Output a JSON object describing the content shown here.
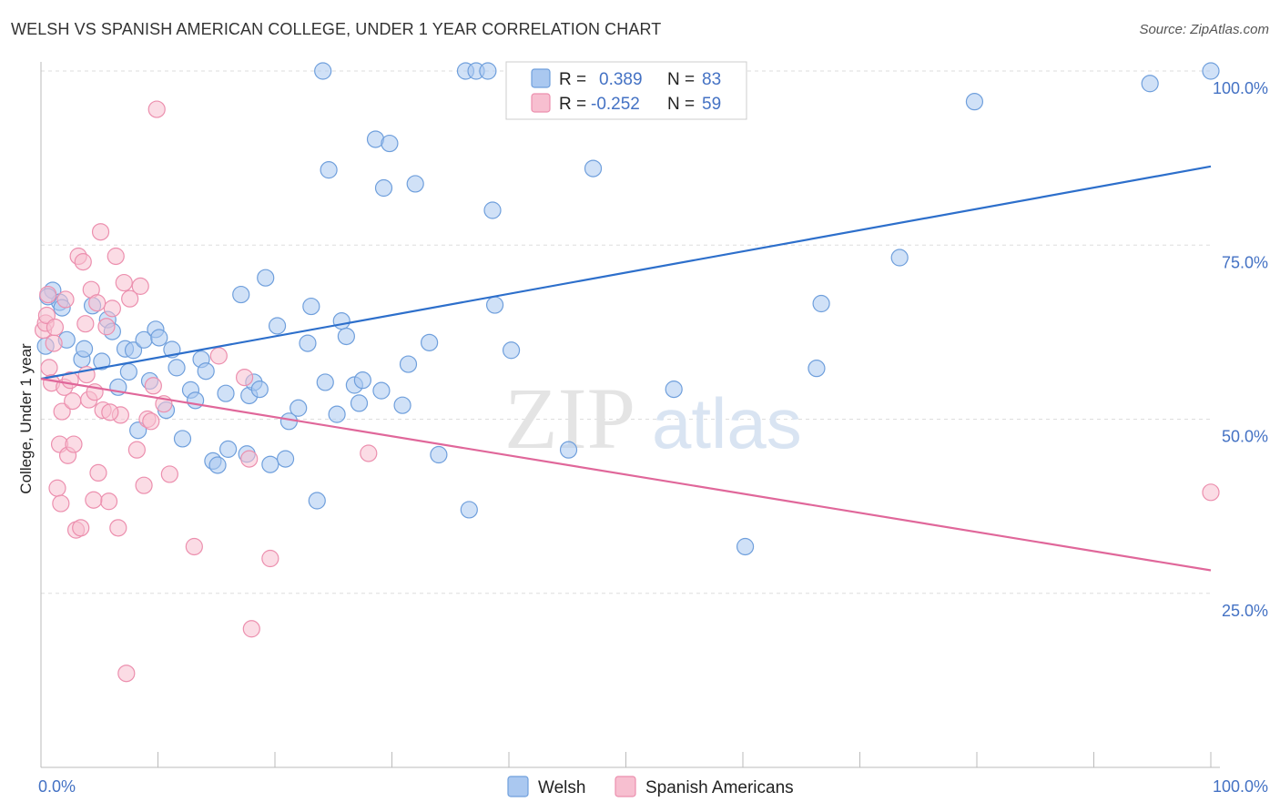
{
  "header": {
    "title": "WELSH VS SPANISH AMERICAN COLLEGE, UNDER 1 YEAR CORRELATION CHART",
    "source": "Source: ZipAtlas.com"
  },
  "watermark": {
    "zip": "ZIP",
    "atlas": "atlas"
  },
  "colors": {
    "welsh_fill": "#aac8f0",
    "welsh_stroke": "#6f9fdc",
    "welsh_line": "#2d6fcb",
    "spanish_fill": "#f7bfd0",
    "spanish_stroke": "#ec8fae",
    "spanish_line": "#e0679a",
    "grid": "#dddddd",
    "axis_text": "#4472c4"
  },
  "legend": {
    "r_label": "R =",
    "n_label": "N =",
    "rows": [
      {
        "series": "Welsh",
        "r": "0.389",
        "n": "83"
      },
      {
        "series": "Spanish Americans",
        "r": "-0.252",
        "n": "59"
      }
    ]
  },
  "chart_data": {
    "type": "scatter",
    "title": "WELSH VS SPANISH AMERICAN COLLEGE, UNDER 1 YEAR CORRELATION CHART",
    "xlabel": "",
    "ylabel": "College, Under 1 year",
    "xlim": [
      0,
      100
    ],
    "ylim": [
      0,
      100
    ],
    "x_ticks": [
      0,
      10,
      20,
      30,
      40,
      50,
      60,
      70,
      80,
      90,
      100
    ],
    "x_tick_labels": [
      {
        "value": 0,
        "label": "0.0%"
      },
      {
        "value": 100,
        "label": "100.0%"
      }
    ],
    "y_tick_labels": [
      {
        "value": 25,
        "label": "25.0%"
      },
      {
        "value": 50,
        "label": "50.0%"
      },
      {
        "value": 75,
        "label": "75.0%"
      },
      {
        "value": 100,
        "label": "100.0%"
      }
    ],
    "grid": true,
    "legend_position": "top-center",
    "series": [
      {
        "name": "Welsh",
        "r": 0.389,
        "n": 83,
        "trend": [
          [
            0,
            55.8
          ],
          [
            100,
            86.3
          ]
        ],
        "points": [
          [
            0.4,
            60.5
          ],
          [
            1.0,
            68.5
          ],
          [
            1.6,
            66.8
          ],
          [
            1.8,
            66.0
          ],
          [
            2.2,
            61.4
          ],
          [
            3.5,
            58.6
          ],
          [
            3.7,
            60.1
          ],
          [
            4.4,
            66.3
          ],
          [
            5.2,
            58.3
          ],
          [
            5.7,
            64.3
          ],
          [
            6.1,
            62.6
          ],
          [
            6.6,
            54.6
          ],
          [
            7.2,
            60.1
          ],
          [
            7.5,
            56.8
          ],
          [
            7.9,
            59.9
          ],
          [
            8.3,
            48.4
          ],
          [
            8.8,
            61.4
          ],
          [
            9.3,
            55.5
          ],
          [
            9.8,
            62.9
          ],
          [
            10.1,
            61.7
          ],
          [
            10.7,
            51.3
          ],
          [
            11.2,
            60.0
          ],
          [
            11.6,
            57.4
          ],
          [
            12.1,
            47.2
          ],
          [
            12.8,
            54.2
          ],
          [
            13.2,
            52.7
          ],
          [
            13.7,
            58.6
          ],
          [
            14.1,
            56.9
          ],
          [
            14.7,
            44.0
          ],
          [
            15.1,
            43.4
          ],
          [
            15.8,
            53.7
          ],
          [
            16.0,
            45.7
          ],
          [
            17.1,
            67.9
          ],
          [
            17.6,
            45.0
          ],
          [
            17.8,
            53.4
          ],
          [
            18.2,
            55.3
          ],
          [
            18.7,
            54.3
          ],
          [
            19.2,
            70.3
          ],
          [
            19.6,
            43.5
          ],
          [
            20.2,
            63.4
          ],
          [
            20.9,
            44.3
          ],
          [
            21.2,
            49.7
          ],
          [
            22.0,
            51.6
          ],
          [
            22.8,
            60.9
          ],
          [
            23.1,
            66.2
          ],
          [
            23.6,
            38.3
          ],
          [
            24.1,
            100.0
          ],
          [
            24.3,
            55.3
          ],
          [
            24.6,
            85.8
          ],
          [
            25.3,
            50.7
          ],
          [
            25.7,
            64.1
          ],
          [
            26.1,
            61.9
          ],
          [
            26.8,
            54.9
          ],
          [
            27.2,
            52.3
          ],
          [
            27.5,
            55.6
          ],
          [
            28.6,
            90.2
          ],
          [
            29.1,
            54.1
          ],
          [
            29.3,
            83.2
          ],
          [
            29.8,
            89.6
          ],
          [
            30.9,
            52.0
          ],
          [
            31.4,
            57.9
          ],
          [
            32.0,
            83.8
          ],
          [
            33.2,
            61.0
          ],
          [
            34.0,
            44.9
          ],
          [
            36.3,
            100.0
          ],
          [
            36.6,
            37.0
          ],
          [
            37.2,
            100.0
          ],
          [
            38.2,
            100.0
          ],
          [
            38.6,
            80.0
          ],
          [
            38.8,
            66.4
          ],
          [
            40.2,
            59.9
          ],
          [
            41.0,
            100.0
          ],
          [
            45.1,
            45.6
          ],
          [
            47.2,
            86.0
          ],
          [
            54.1,
            54.3
          ],
          [
            60.2,
            31.7
          ],
          [
            66.3,
            57.3
          ],
          [
            66.7,
            66.6
          ],
          [
            73.4,
            73.2
          ],
          [
            79.8,
            95.6
          ],
          [
            94.8,
            98.2
          ],
          [
            100.0,
            100.0
          ],
          [
            0.6,
            67.6
          ]
        ]
      },
      {
        "name": "Spanish Americans",
        "r": -0.252,
        "n": 59,
        "trend": [
          [
            0,
            55.8
          ],
          [
            100,
            28.3
          ]
        ],
        "points": [
          [
            0.2,
            62.8
          ],
          [
            0.4,
            63.8
          ],
          [
            0.6,
            67.9
          ],
          [
            0.7,
            57.4
          ],
          [
            0.9,
            55.2
          ],
          [
            1.1,
            60.9
          ],
          [
            1.4,
            40.1
          ],
          [
            1.6,
            46.4
          ],
          [
            1.8,
            51.1
          ],
          [
            2.0,
            54.6
          ],
          [
            2.3,
            44.8
          ],
          [
            2.5,
            55.6
          ],
          [
            2.8,
            46.4
          ],
          [
            3.0,
            34.1
          ],
          [
            3.2,
            73.4
          ],
          [
            3.4,
            34.4
          ],
          [
            3.6,
            72.6
          ],
          [
            3.8,
            63.7
          ],
          [
            4.1,
            52.8
          ],
          [
            4.3,
            68.6
          ],
          [
            4.6,
            53.9
          ],
          [
            4.9,
            42.3
          ],
          [
            5.1,
            76.9
          ],
          [
            5.3,
            51.3
          ],
          [
            5.6,
            63.3
          ],
          [
            5.8,
            38.2
          ],
          [
            6.1,
            65.9
          ],
          [
            6.4,
            73.4
          ],
          [
            6.6,
            34.4
          ],
          [
            6.8,
            50.6
          ],
          [
            7.1,
            69.6
          ],
          [
            7.3,
            13.5
          ],
          [
            7.6,
            67.3
          ],
          [
            8.2,
            45.6
          ],
          [
            8.5,
            69.1
          ],
          [
            8.8,
            40.5
          ],
          [
            9.1,
            50.0
          ],
          [
            9.4,
            49.7
          ],
          [
            9.9,
            94.5
          ],
          [
            10.5,
            52.2
          ],
          [
            11.0,
            42.1
          ],
          [
            13.1,
            31.7
          ],
          [
            15.2,
            59.1
          ],
          [
            17.4,
            56.0
          ],
          [
            17.8,
            44.3
          ],
          [
            18.0,
            19.9
          ],
          [
            19.6,
            30.0
          ],
          [
            28.0,
            45.1
          ],
          [
            100.0,
            39.5
          ],
          [
            0.5,
            64.9
          ],
          [
            1.2,
            63.2
          ],
          [
            2.1,
            67.2
          ],
          [
            2.7,
            52.6
          ],
          [
            3.9,
            56.4
          ],
          [
            4.8,
            66.7
          ],
          [
            5.9,
            51.0
          ],
          [
            1.7,
            37.9
          ],
          [
            4.5,
            38.4
          ],
          [
            9.6,
            54.8
          ]
        ]
      }
    ]
  },
  "bottom_legend": [
    "Welsh",
    "Spanish Americans"
  ]
}
